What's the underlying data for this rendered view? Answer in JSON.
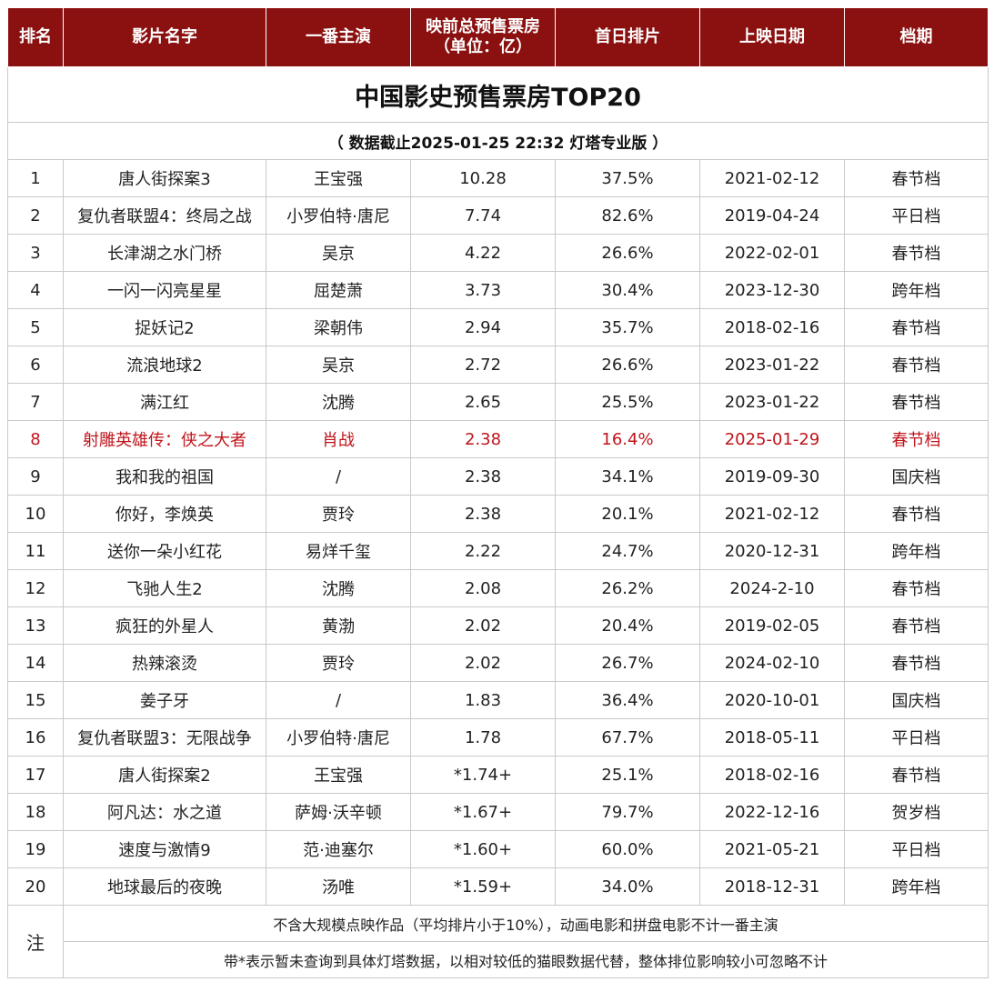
{
  "title": "中国影史预售票房TOP20",
  "subtitle": "（ 数据截止2025-01-25 22:32 灯塔专业版 ）",
  "headers": {
    "rank": "排名",
    "film": "影片名字",
    "lead": "一番主演",
    "presale": "映前总预售票房（单位：亿）",
    "first_day": "首日排片",
    "release": "上映日期",
    "season": "档期"
  },
  "rows": [
    {
      "rank": "1",
      "film": "唐人街探案3",
      "lead": "王宝强",
      "presale": "10.28",
      "first_day": "37.5%",
      "release": "2021-02-12",
      "season": "春节档"
    },
    {
      "rank": "2",
      "film": "复仇者联盟4：终局之战",
      "lead": "小罗伯特·唐尼",
      "presale": "7.74",
      "first_day": "82.6%",
      "release": "2019-04-24",
      "season": "平日档"
    },
    {
      "rank": "3",
      "film": "长津湖之水门桥",
      "lead": "吴京",
      "presale": "4.22",
      "first_day": "26.6%",
      "release": "2022-02-01",
      "season": "春节档"
    },
    {
      "rank": "4",
      "film": "一闪一闪亮星星",
      "lead": "屈楚萧",
      "presale": "3.73",
      "first_day": "30.4%",
      "release": "2023-12-30",
      "season": "跨年档"
    },
    {
      "rank": "5",
      "film": "捉妖记2",
      "lead": "梁朝伟",
      "presale": "2.94",
      "first_day": "35.7%",
      "release": "2018-02-16",
      "season": "春节档"
    },
    {
      "rank": "6",
      "film": "流浪地球2",
      "lead": "吴京",
      "presale": "2.72",
      "first_day": "26.6%",
      "release": "2023-01-22",
      "season": "春节档"
    },
    {
      "rank": "7",
      "film": "满江红",
      "lead": "沈腾",
      "presale": "2.65",
      "first_day": "25.5%",
      "release": "2023-01-22",
      "season": "春节档"
    },
    {
      "rank": "8",
      "film": "射雕英雄传：侠之大者",
      "lead": "肖战",
      "presale": "2.38",
      "first_day": "16.4%",
      "release": "2025-01-29",
      "season": "春节档"
    },
    {
      "rank": "9",
      "film": "我和我的祖国",
      "lead": "/",
      "presale": "2.38",
      "first_day": "34.1%",
      "release": "2019-09-30",
      "season": "国庆档"
    },
    {
      "rank": "10",
      "film": "你好，李焕英",
      "lead": "贾玲",
      "presale": "2.38",
      "first_day": "20.1%",
      "release": "2021-02-12",
      "season": "春节档"
    },
    {
      "rank": "11",
      "film": "送你一朵小红花",
      "lead": "易烊千玺",
      "presale": "2.22",
      "first_day": "24.7%",
      "release": "2020-12-31",
      "season": "跨年档"
    },
    {
      "rank": "12",
      "film": "飞驰人生2",
      "lead": "沈腾",
      "presale": "2.08",
      "first_day": "26.2%",
      "release": "2024-2-10",
      "season": "春节档"
    },
    {
      "rank": "13",
      "film": "疯狂的外星人",
      "lead": "黄渤",
      "presale": "2.02",
      "first_day": "20.4%",
      "release": "2019-02-05",
      "season": "春节档"
    },
    {
      "rank": "14",
      "film": "热辣滚烫",
      "lead": "贾玲",
      "presale": "2.02",
      "first_day": "26.7%",
      "release": "2024-02-10",
      "season": "春节档"
    },
    {
      "rank": "15",
      "film": "姜子牙",
      "lead": "/",
      "presale": "1.83",
      "first_day": "36.4%",
      "release": "2020-10-01",
      "season": "国庆档"
    },
    {
      "rank": "16",
      "film": "复仇者联盟3：无限战争",
      "lead": "小罗伯特·唐尼",
      "presale": "1.78",
      "first_day": "67.7%",
      "release": "2018-05-11",
      "season": "平日档"
    },
    {
      "rank": "17",
      "film": "唐人街探案2",
      "lead": "王宝强",
      "presale": "*1.74+",
      "first_day": "25.1%",
      "release": "2018-02-16",
      "season": "春节档"
    },
    {
      "rank": "18",
      "film": "阿凡达：水之道",
      "lead": "萨姆·沃辛顿",
      "presale": "*1.67+",
      "first_day": "79.7%",
      "release": "2022-12-16",
      "season": "贺岁档"
    },
    {
      "rank": "19",
      "film": "速度与激情9",
      "lead": "范·迪塞尔",
      "presale": "*1.60+",
      "first_day": "60.0%",
      "release": "2021-05-21",
      "season": "平日档"
    },
    {
      "rank": "20",
      "film": "地球最后的夜晚",
      "lead": "汤唯",
      "presale": "*1.59+",
      "first_day": "34.0%",
      "release": "2018-12-31",
      "season": "跨年档"
    }
  ],
  "highlight_rank": "8",
  "note": {
    "label": "注",
    "lines": [
      "不含大规模点映作品（平均排片小于10%），动画电影和拼盘电影不计一番主演",
      "带*表示暂未查询到具体灯塔数据，以相对较低的猫眼数据代替，整体排位影响较小可忽略不计"
    ]
  },
  "colors": {
    "header_bg": "#8b1010",
    "highlight_text": "#c0141b"
  }
}
